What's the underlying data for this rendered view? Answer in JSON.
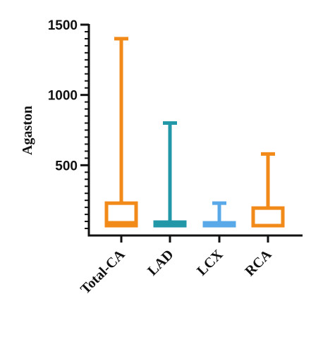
{
  "chart_data": {
    "type": "box",
    "title": "",
    "xlabel": "",
    "ylabel": "Agaston",
    "ylim": [
      0,
      1500
    ],
    "y_ticks": [
      500,
      1000,
      1500
    ],
    "y_tick_labels": [
      "500",
      "1000",
      "1500"
    ],
    "categories": [
      "Total-CA",
      "LAD",
      "LCX",
      "RCA"
    ],
    "series": [
      {
        "name": "Total-CA",
        "color": "#F28A1A",
        "min": 70,
        "q1": 70,
        "median": 90,
        "q3": 230,
        "max": 1400
      },
      {
        "name": "LAD",
        "color": "#2197A8",
        "min": 70,
        "q1": 70,
        "median": 80,
        "q3": 95,
        "max": 800
      },
      {
        "name": "LCX",
        "color": "#59A8E8",
        "min": 70,
        "q1": 70,
        "median": 80,
        "q3": 90,
        "max": 230
      },
      {
        "name": "RCA",
        "color": "#F28A1A",
        "min": 70,
        "q1": 70,
        "median": 70,
        "q3": 195,
        "max": 580
      }
    ],
    "grid": false,
    "legend": "none"
  }
}
